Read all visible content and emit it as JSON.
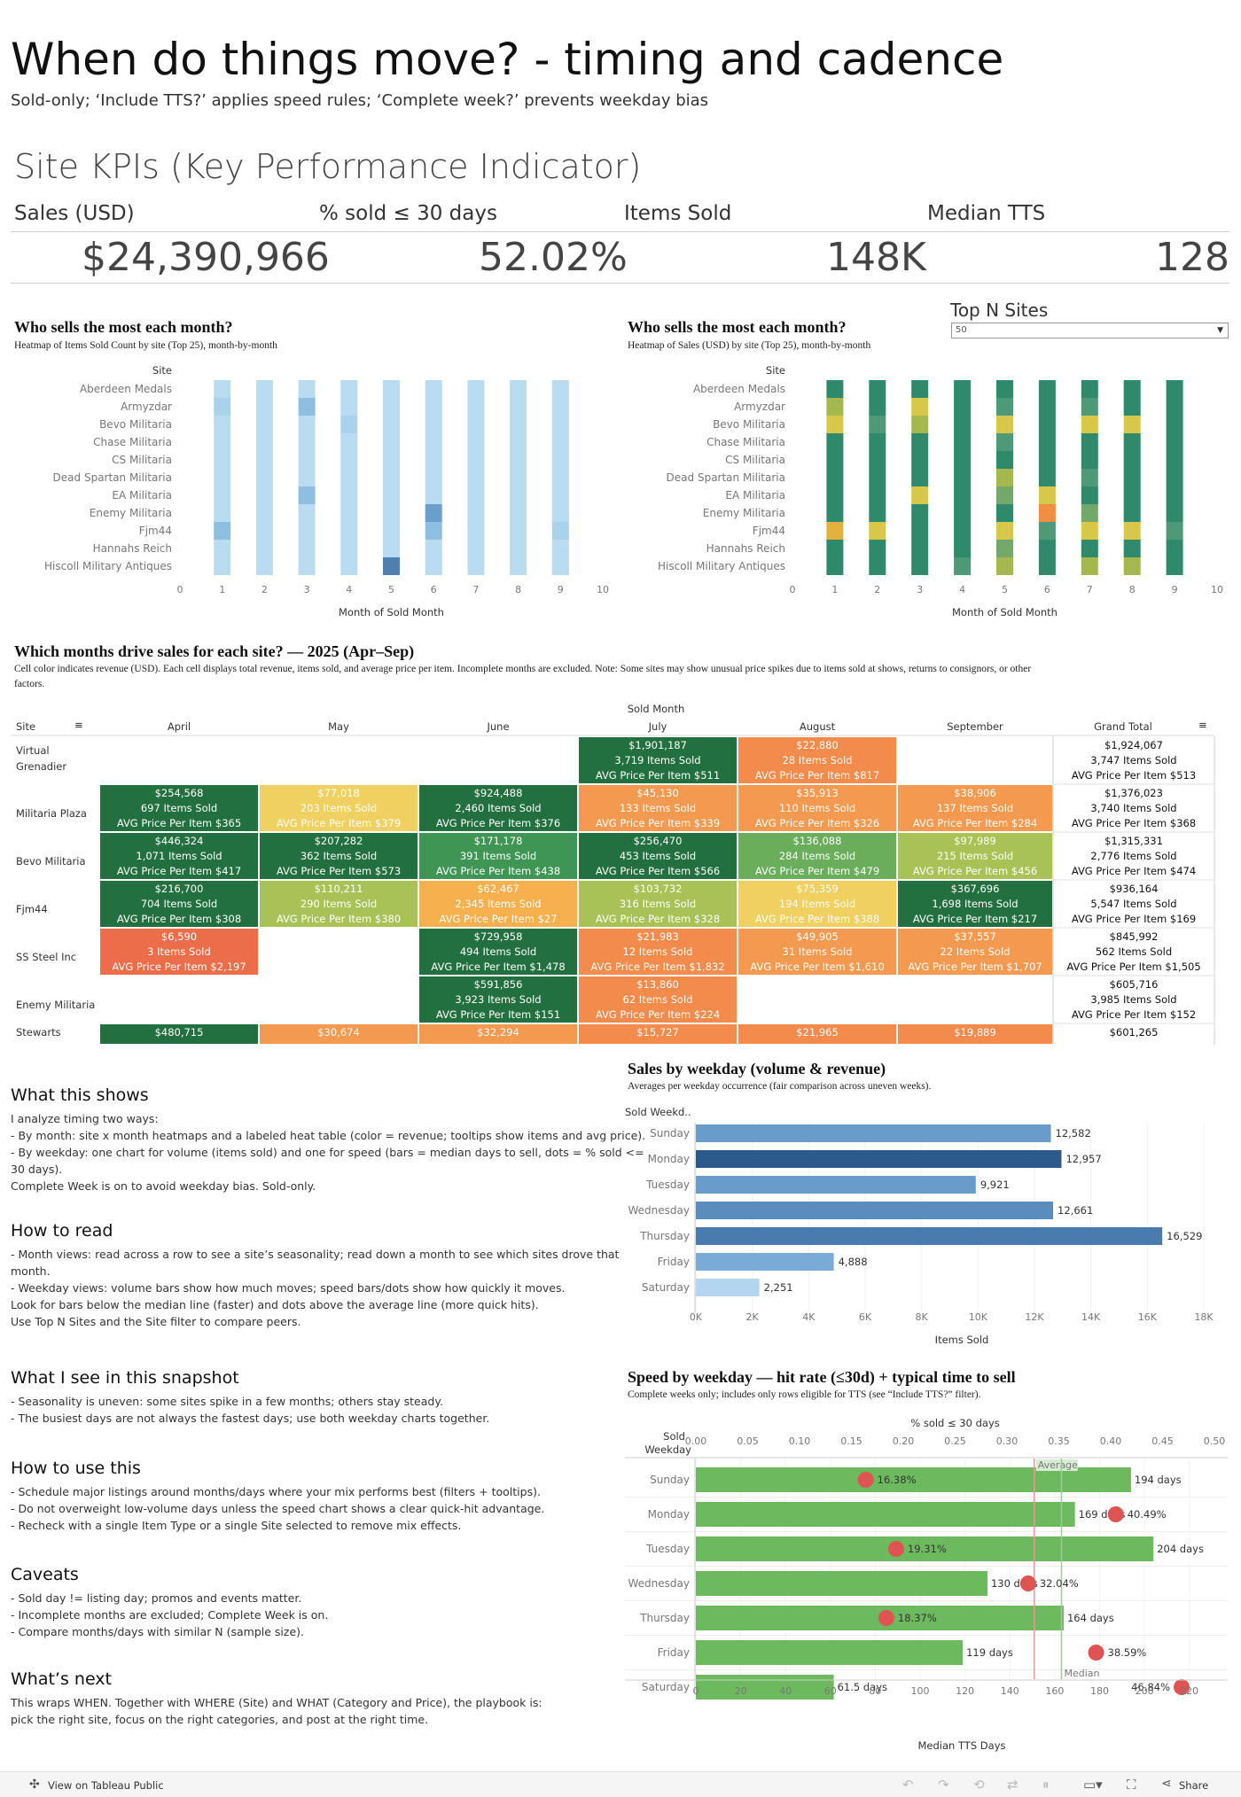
{
  "header": {
    "title": "When do things move? - timing and cadence",
    "subtitle": "Sold-only; ‘Include TTS?’ applies speed rules; ‘Complete week?’ prevents weekday bias"
  },
  "kpis": {
    "title": "Site KPIs (Key Performance Indicator)",
    "items": [
      {
        "label": "Sales (USD)",
        "value": "$24,390,966"
      },
      {
        "label": "% sold ≤ 30 days",
        "value": "52.02%"
      },
      {
        "label": "Items Sold",
        "value": "148K"
      },
      {
        "label": "Median TTS",
        "value": "128"
      }
    ]
  },
  "top_n": {
    "label": "Top N Sites",
    "value": "50"
  },
  "heatmap_items": {
    "title": "Who sells the most each month?",
    "subtitle": "Heatmap of Items Sold Count by site (Top 25), month-by-month",
    "row_header": "Site",
    "xlabel": "Month of Sold Month",
    "sites": [
      "Aberdeen Medals",
      "Armyzdar",
      "Bevo Militaria",
      "Chase Militaria",
      "CS Militaria",
      "Dead Spartan Militaria",
      "EA Militaria",
      "Enemy Militaria",
      "Fjm44",
      "Hannahs Reich",
      "Hiscoll Military Antiques"
    ],
    "ticks": [
      "0",
      "1",
      "2",
      "3",
      "4",
      "5",
      "6",
      "7",
      "8",
      "9",
      "10"
    ],
    "months": [
      1,
      2,
      3,
      4,
      5,
      6,
      7,
      8,
      9
    ],
    "colors": [
      "#b9dcf0",
      "#a9d2ec",
      "#8fbfe0",
      "#6a9fcb",
      "#4e7fae"
    ],
    "levels": [
      [
        0,
        0,
        0,
        0,
        0,
        0,
        0,
        0,
        0
      ],
      [
        1,
        0,
        2,
        0,
        0,
        0,
        0,
        0,
        0
      ],
      [
        0,
        0,
        0,
        1,
        0,
        0,
        0,
        0,
        0
      ],
      [
        0,
        0,
        0,
        0,
        0,
        0,
        0,
        0,
        0
      ],
      [
        0,
        0,
        0,
        0,
        0,
        0,
        0,
        0,
        0
      ],
      [
        0,
        0,
        0,
        0,
        0,
        0,
        0,
        0,
        0
      ],
      [
        0,
        0,
        2,
        0,
        0,
        0,
        0,
        0,
        0
      ],
      [
        0,
        0,
        0,
        0,
        0,
        3,
        0,
        0,
        0
      ],
      [
        2,
        0,
        0,
        0,
        0,
        2,
        0,
        0,
        1
      ],
      [
        0,
        0,
        0,
        0,
        0,
        0,
        0,
        0,
        0
      ],
      [
        0,
        0,
        0,
        0,
        4,
        0,
        0,
        0,
        0
      ]
    ]
  },
  "heatmap_sales": {
    "title": "Who sells the most each month?",
    "subtitle": "Heatmap of Sales (USD) by site (Top 25), month-by-month",
    "row_header": "Site",
    "xlabel": "Month of Sold Month",
    "sites": [
      "Aberdeen Medals",
      "Armyzdar",
      "Bevo Militaria",
      "Chase Militaria",
      "CS Militaria",
      "Dead Spartan Militaria",
      "EA Militaria",
      "Enemy Militaria",
      "Fjm44",
      "Hannahs Reich",
      "Hiscoll Military Antiques"
    ],
    "ticks": [
      "0",
      "1",
      "2",
      "3",
      "4",
      "5",
      "6",
      "7",
      "8",
      "9",
      "10"
    ],
    "months": [
      1,
      2,
      3,
      4,
      5,
      6,
      7,
      8,
      9
    ],
    "colors": [
      "#2e8a6a",
      "#4d9978",
      "#72a86a",
      "#a4b84e",
      "#d8c84a",
      "#e3b13e",
      "#f08f41"
    ],
    "levels": [
      [
        0,
        0,
        0,
        0,
        0,
        0,
        0,
        0,
        0
      ],
      [
        3,
        0,
        4,
        0,
        1,
        0,
        1,
        0,
        0
      ],
      [
        4,
        1,
        3,
        0,
        4,
        0,
        4,
        4,
        0
      ],
      [
        0,
        0,
        0,
        0,
        1,
        0,
        0,
        0,
        0
      ],
      [
        0,
        0,
        0,
        0,
        0,
        0,
        0,
        0,
        0
      ],
      [
        0,
        0,
        0,
        0,
        3,
        0,
        1,
        0,
        0
      ],
      [
        0,
        0,
        4,
        0,
        2,
        4,
        0,
        0,
        0
      ],
      [
        0,
        0,
        0,
        0,
        0,
        6,
        2,
        0,
        0
      ],
      [
        5,
        4,
        0,
        0,
        4,
        1,
        4,
        4,
        1
      ],
      [
        0,
        0,
        0,
        0,
        2,
        0,
        0,
        0,
        0
      ],
      [
        0,
        0,
        0,
        1,
        3,
        0,
        3,
        3,
        0
      ]
    ]
  },
  "sales_table": {
    "title": "Which months drive sales for each site? — 2025 (Apr–Sep)",
    "subtitle_lines": [
      "Cell color indicates revenue (USD). Each cell displays total revenue, items sold, and average price per item. Incomplete months are excluded. Note: Some sites may show unusual price spikes due to items sold at shows, returns to consignors, or other",
      "factors."
    ],
    "group_header": "Sold Month",
    "site_header": "Site",
    "months": [
      "April",
      "May",
      "June",
      "July",
      "August",
      "September"
    ],
    "grand_total_header": "Grand Total",
    "rows": [
      {
        "site": "Virtual Grenadier",
        "cells": [
          null,
          null,
          null,
          {
            "rev": "$1,901,187",
            "items": "3,719 Items Sold",
            "avg": "AVG Price Per Item $511",
            "c": "#22703f"
          },
          {
            "rev": "$22,880",
            "items": "28 Items Sold",
            "avg": "AVG Price Per Item $817",
            "c": "#f28b4b"
          },
          null
        ],
        "total": {
          "rev": "$1,924,067",
          "items": "3,747 Items Sold",
          "avg": "AVG Price Per Item $513"
        }
      },
      {
        "site": "Militaria Plaza",
        "cells": [
          {
            "rev": "$254,568",
            "items": "697 Items Sold",
            "avg": "AVG Price Per Item $365",
            "c": "#22703f"
          },
          {
            "rev": "$77,018",
            "items": "203 Items Sold",
            "avg": "AVG Price Per Item $379",
            "c": "#f0d060"
          },
          {
            "rev": "$924,488",
            "items": "2,460 Items Sold",
            "avg": "AVG Price Per Item $376",
            "c": "#22703f"
          },
          {
            "rev": "$45,130",
            "items": "133 Items Sold",
            "avg": "AVG Price Per Item $339",
            "c": "#f49a50"
          },
          {
            "rev": "$35,913",
            "items": "110 Items Sold",
            "avg": "AVG Price Per Item $326",
            "c": "#f49a50"
          },
          {
            "rev": "$38,906",
            "items": "137 Items Sold",
            "avg": "AVG Price Per Item $284",
            "c": "#f49a50"
          }
        ],
        "total": {
          "rev": "$1,376,023",
          "items": "3,740 Items Sold",
          "avg": "AVG Price Per Item $368"
        }
      },
      {
        "site": "Bevo Militaria",
        "cells": [
          {
            "rev": "$446,324",
            "items": "1,071 Items Sold",
            "avg": "AVG Price Per Item $417",
            "c": "#22703f"
          },
          {
            "rev": "$207,282",
            "items": "362 Items Sold",
            "avg": "AVG Price Per Item $573",
            "c": "#22703f"
          },
          {
            "rev": "$171,178",
            "items": "391 Items Sold",
            "avg": "AVG Price Per Item $438",
            "c": "#3f9554"
          },
          {
            "rev": "$256,470",
            "items": "453 Items Sold",
            "avg": "AVG Price Per Item $566",
            "c": "#22703f"
          },
          {
            "rev": "$136,088",
            "items": "284 Items Sold",
            "avg": "AVG Price Per Item $479",
            "c": "#6aad5a"
          },
          {
            "rev": "$97,989",
            "items": "215 Items Sold",
            "avg": "AVG Price Per Item $456",
            "c": "#a9c256"
          }
        ],
        "total": {
          "rev": "$1,315,331",
          "items": "2,776 Items Sold",
          "avg": "AVG Price Per Item $474"
        }
      },
      {
        "site": "Fjm44",
        "cells": [
          {
            "rev": "$216,700",
            "items": "704 Items Sold",
            "avg": "AVG Price Per Item $308",
            "c": "#22703f"
          },
          {
            "rev": "$110,211",
            "items": "290 Items Sold",
            "avg": "AVG Price Per Item $380",
            "c": "#a9c256"
          },
          {
            "rev": "$62,467",
            "items": "2,345 Items Sold",
            "avg": "AVG Price Per Item $27",
            "c": "#f7b04e"
          },
          {
            "rev": "$103,732",
            "items": "316 Items Sold",
            "avg": "AVG Price Per Item $328",
            "c": "#a9c256"
          },
          {
            "rev": "$75,359",
            "items": "194 Items Sold",
            "avg": "AVG Price Per Item $388",
            "c": "#f0d060"
          },
          {
            "rev": "$367,696",
            "items": "1,698 Items Sold",
            "avg": "AVG Price Per Item $217",
            "c": "#22703f"
          }
        ],
        "total": {
          "rev": "$936,164",
          "items": "5,547 Items Sold",
          "avg": "AVG Price Per Item $169"
        }
      },
      {
        "site": "SS Steel Inc",
        "cells": [
          {
            "rev": "$6,590",
            "items": "3 Items Sold",
            "avg": "AVG Price Per Item $2,197",
            "c": "#ec6d4a"
          },
          null,
          {
            "rev": "$729,958",
            "items": "494 Items Sold",
            "avg": "AVG Price Per Item $1,478",
            "c": "#22703f"
          },
          {
            "rev": "$21,983",
            "items": "12 Items Sold",
            "avg": "AVG Price Per Item $1,832",
            "c": "#f28b4b"
          },
          {
            "rev": "$49,905",
            "items": "31 Items Sold",
            "avg": "AVG Price Per Item $1,610",
            "c": "#f49a50"
          },
          {
            "rev": "$37,557",
            "items": "22 Items Sold",
            "avg": "AVG Price Per Item $1,707",
            "c": "#f49a50"
          }
        ],
        "total": {
          "rev": "$845,992",
          "items": "562 Items Sold",
          "avg": "AVG Price Per Item $1,505"
        }
      },
      {
        "site": "Enemy Militaria",
        "cells": [
          null,
          null,
          {
            "rev": "$591,856",
            "items": "3,923 Items Sold",
            "avg": "AVG Price Per Item $151",
            "c": "#22703f"
          },
          {
            "rev": "$13,860",
            "items": "62 Items Sold",
            "avg": "AVG Price Per Item $224",
            "c": "#f28b4b"
          },
          null,
          null
        ],
        "total": {
          "rev": "$605,716",
          "items": "3,985 Items Sold",
          "avg": "AVG Price Per Item $152"
        }
      },
      {
        "site": "Stewarts",
        "cells": [
          {
            "rev": "$480,715",
            "items": "",
            "avg": "",
            "c": "#22703f"
          },
          {
            "rev": "$30,674",
            "items": "",
            "avg": "",
            "c": "#f49a50"
          },
          {
            "rev": "$32,294",
            "items": "",
            "avg": "",
            "c": "#f49a50"
          },
          {
            "rev": "$15,727",
            "items": "",
            "avg": "",
            "c": "#f28b4b"
          },
          {
            "rev": "$21,965",
            "items": "",
            "avg": "",
            "c": "#f28b4b"
          },
          {
            "rev": "$19,889",
            "items": "",
            "avg": "",
            "c": "#f28b4b"
          }
        ],
        "total": {
          "rev": "$601,265",
          "items": "",
          "avg": ""
        }
      }
    ]
  },
  "notes": [
    {
      "heading": "What this shows",
      "lines": [
        "I analyze timing two ways:",
        "- By month: site x month heatmaps and a labeled heat table (color = revenue; tooltips show items and avg price).",
        "- By weekday: one chart for volume (items sold) and one for speed (bars = median days to sell, dots = % sold <=",
        "30 days).",
        "Complete Week is on to avoid weekday bias. Sold-only."
      ]
    },
    {
      "heading": "How to read",
      "lines": [
        "- Month views: read across a row to see a site’s seasonality; read down a month to see which sites drove that",
        "month.",
        "- Weekday views: volume bars show how much moves; speed bars/dots show how quickly it moves.",
        "Look for bars below the median line (faster) and dots above the average line (more quick hits).",
        "Use Top N Sites and the Site filter to compare peers."
      ]
    },
    {
      "heading": "What I see in this snapshot",
      "lines": [
        "- Seasonality is uneven: some sites spike in a few months; others stay steady.",
        "- The busiest days are not always the fastest days; use both weekday charts together."
      ]
    },
    {
      "heading": "How to use this",
      "lines": [
        "- Schedule major listings around months/days where your mix performs best (filters + tooltips).",
        "- Do not overweight low-volume days unless the speed chart shows a clear quick-hit advantage.",
        "- Recheck with a single Item Type or a single Site selected to remove mix effects."
      ]
    },
    {
      "heading": "Caveats",
      "lines": [
        "- Sold day != listing day; promos and events matter.",
        "- Incomplete months are excluded; Complete Week is on.",
        "- Compare months/days with similar N (sample size)."
      ]
    },
    {
      "heading": "What’s next",
      "lines": [
        "This wraps WHEN. Together with WHERE (Site) and WHAT (Category and Price), the playbook is:",
        "pick the right site, focus on the right categories, and post at the right time."
      ]
    }
  ],
  "chart_data": [
    {
      "type": "bar",
      "title": "Sales by weekday (volume & revenue)",
      "subtitle": "Averages per weekday occurrence (fair comparison across uneven weeks).",
      "row_header": "Sold Weekd..",
      "categories": [
        "Sunday",
        "Monday",
        "Tuesday",
        "Wednesday",
        "Thursday",
        "Friday",
        "Saturday"
      ],
      "values": [
        12582,
        12957,
        9921,
        12661,
        16529,
        4888,
        2251
      ],
      "value_labels": [
        "12,582",
        "12,957",
        "9,921",
        "12,661",
        "16,529",
        "4,888",
        "2,251"
      ],
      "colors": [
        "#6a9cc9",
        "#2d5a8c",
        "#6a9cc9",
        "#5a8cbd",
        "#4a7baf",
        "#7aaad6",
        "#b3d5ef"
      ],
      "xlabel": "Items Sold",
      "xlim": [
        0,
        18000
      ],
      "ticks": [
        0,
        2000,
        4000,
        6000,
        8000,
        10000,
        12000,
        14000,
        16000,
        18000
      ],
      "tick_labels": [
        "0K",
        "2K",
        "4K",
        "6K",
        "8K",
        "10K",
        "12K",
        "14K",
        "16K",
        "18K"
      ]
    },
    {
      "type": "bar",
      "title": "Speed by weekday — hit rate (≤30d) + typical time to sell",
      "subtitle": "Complete weeks only; includes only rows eligible for TTS (see “Include TTS?” filter).",
      "row_header_1": "Sold",
      "row_header_2": "Weekday",
      "categories": [
        "Sunday",
        "Monday",
        "Tuesday",
        "Wednesday",
        "Thursday",
        "Friday",
        "Saturday"
      ],
      "median_tts": [
        194,
        169,
        204,
        130,
        164,
        119,
        61.5
      ],
      "median_labels": [
        "194 days",
        "169 days",
        "204 days",
        "130 days",
        "164 days",
        "119 days",
        "61.5 days"
      ],
      "pct_sold_30": [
        0.1638,
        0.4049,
        0.1931,
        0.3204,
        0.1837,
        0.3859,
        0.4684
      ],
      "pct_labels": [
        "16.38%",
        "40.49%",
        "19.31%",
        "32.04%",
        "18.37%",
        "38.59%",
        "46.84%"
      ],
      "xlabel": "Median TTS Days",
      "xlim": [
        0,
        230
      ],
      "x_ticks": [
        0,
        20,
        40,
        60,
        80,
        100,
        120,
        140,
        160,
        180,
        200,
        220
      ],
      "x_tick_labels": [
        "0",
        "20",
        "40",
        "60",
        "80",
        "100",
        "120",
        "140",
        "160",
        "180",
        "200",
        "220"
      ],
      "top_axis_label": "% sold ≤ 30 days",
      "top_lim": [
        0,
        0.5
      ],
      "top_ticks": [
        0,
        0.05,
        0.1,
        0.15,
        0.2,
        0.25,
        0.3,
        0.35,
        0.4,
        0.45,
        0.5
      ],
      "top_tick_labels": [
        "0.00",
        "0.05",
        "0.10",
        "0.15",
        "0.20",
        "0.25",
        "0.30",
        "0.35",
        "0.40",
        "0.45",
        "0.50"
      ],
      "average_pct": 0.3263,
      "average_label": "Average",
      "median_days": 163,
      "median_label": "Median",
      "bar_color": "#6dba5e",
      "dot_color": "#e05353"
    }
  ],
  "footer": {
    "tableau_link": "View on Tableau Public",
    "share": "Share"
  }
}
